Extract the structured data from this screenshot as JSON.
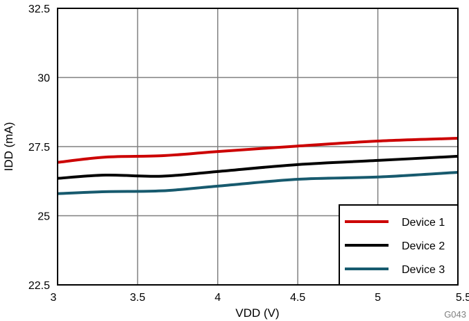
{
  "chart_data": {
    "type": "line",
    "xlabel": "VDD (V)",
    "ylabel": "IDD (mA)",
    "xlim": [
      3,
      5.5
    ],
    "ylim": [
      22.5,
      32.5
    ],
    "xticks": [
      "3",
      "3.5",
      "4",
      "4.5",
      "5",
      "5.5"
    ],
    "yticks": [
      "22.5",
      "25",
      "27.5",
      "30",
      "32.5"
    ],
    "grid": true,
    "legend_position": "bottom-right",
    "watermark": "G043",
    "x": [
      3,
      3.3,
      3.65,
      4,
      4.5,
      5,
      5.5
    ],
    "series": [
      {
        "name": "Device 1",
        "color": "#cc0000",
        "values": [
          26.93,
          27.12,
          27.17,
          27.32,
          27.52,
          27.7,
          27.8
        ]
      },
      {
        "name": "Device 2",
        "color": "#000000",
        "values": [
          26.35,
          26.47,
          26.43,
          26.6,
          26.85,
          27.0,
          27.15
        ]
      },
      {
        "name": "Device 3",
        "color": "#175a6e",
        "values": [
          25.8,
          25.87,
          25.9,
          26.07,
          26.32,
          26.4,
          26.57
        ]
      }
    ]
  }
}
